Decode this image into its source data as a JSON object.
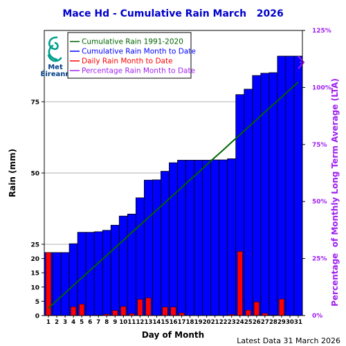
{
  "chart_data": {
    "type": "bar",
    "title": "Mace Hd - Cumulative Rain March   2026",
    "xlabel": "Day of Month",
    "ylabel": "Rain (mm)",
    "y2label": "Percentage  of Monthly Long Term Average (LTA)",
    "footer": "Latest Data 31 March 2026",
    "logo_text": [
      "Met",
      "Éireann"
    ],
    "ylim": [
      0,
      100
    ],
    "y2lim": [
      0,
      125
    ],
    "y_ticks": [
      0,
      5,
      10,
      15,
      20,
      25,
      50,
      75
    ],
    "y2_ticks": [
      "0%",
      "25%",
      "50%",
      "75%",
      "100%",
      "125%"
    ],
    "categories": [
      1,
      2,
      3,
      4,
      5,
      6,
      7,
      8,
      9,
      10,
      11,
      12,
      13,
      14,
      15,
      16,
      17,
      18,
      19,
      20,
      21,
      22,
      23,
      24,
      25,
      26,
      27,
      28,
      29,
      30,
      31
    ],
    "legend": {
      "position": "top-left",
      "entries": [
        {
          "label": "Cumulative Rain 1991-2020",
          "color": "#006400"
        },
        {
          "label": "Cumulative Rain Month to Date",
          "color": "#0000ff"
        },
        {
          "label": "Daily Rain Month to Date",
          "color": "#ff0000"
        },
        {
          "label": "Percentage Rain Month to Date",
          "color": "#a020f0"
        }
      ]
    },
    "series": [
      {
        "name": "Cumulative Rain Month to Date",
        "type": "bar",
        "color": "#0000ff",
        "values": [
          22.1,
          22.1,
          22.1,
          25.2,
          29.2,
          29.2,
          29.4,
          29.9,
          31.7,
          34.9,
          35.6,
          41.3,
          47.5,
          47.6,
          50.6,
          53.6,
          54.5,
          54.5,
          54.5,
          54.5,
          54.6,
          54.6,
          55.0,
          77.5,
          79.4,
          84.2,
          85.0,
          85.2,
          91.0,
          91.0,
          91.0
        ]
      },
      {
        "name": "Daily Rain Month to Date",
        "type": "bar",
        "color": "#ff0000",
        "values": [
          22.1,
          0,
          0,
          3.1,
          4.0,
          0,
          0.2,
          0.5,
          1.8,
          3.2,
          0.7,
          5.7,
          6.2,
          0.1,
          3.0,
          3.0,
          0.9,
          0,
          0,
          0,
          0.1,
          0,
          0.4,
          22.5,
          1.9,
          4.8,
          0.8,
          0.2,
          5.8,
          0,
          0
        ]
      },
      {
        "name": "Cumulative Rain 1991-2020",
        "type": "line",
        "color": "#006400",
        "values": [
          2.6,
          5.3,
          7.9,
          10.6,
          13.2,
          15.9,
          18.5,
          21.1,
          23.8,
          26.4,
          29.1,
          31.7,
          34.4,
          37.0,
          39.6,
          42.3,
          44.9,
          47.6,
          50.2,
          52.9,
          55.5,
          58.1,
          60.8,
          63.4,
          66.1,
          68.7,
          71.4,
          74.0,
          76.6,
          79.3,
          81.9
        ]
      }
    ],
    "percentage_to_date": 111,
    "percentage_color": "#a020f0",
    "grid": true
  }
}
